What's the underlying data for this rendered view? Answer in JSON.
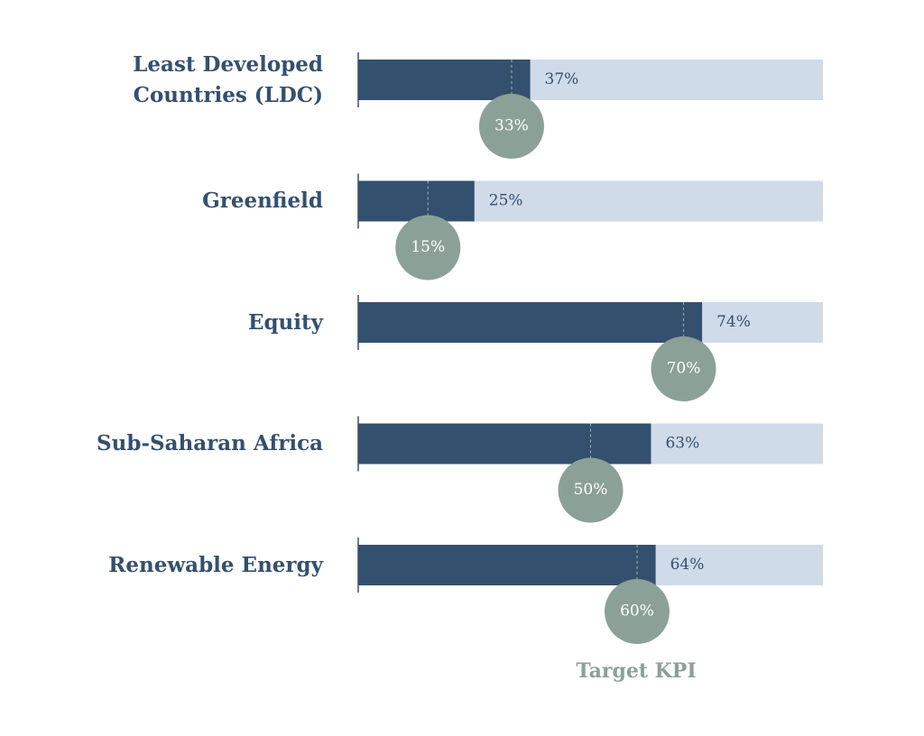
{
  "chart_data": {
    "type": "bar",
    "categories": [
      "Least Developed Countries (LDC)",
      "Greenfield",
      "Equity",
      "Sub-Saharan Africa",
      "Renewable Energy"
    ],
    "values": [
      37,
      25,
      74,
      63,
      64
    ],
    "value_labels": [
      "37%",
      "25%",
      "74%",
      "63%",
      "64%"
    ],
    "color": "#34506f",
    "track_color": "#d0dbe9",
    "targets": [
      33,
      15,
      70,
      50,
      60
    ],
    "target_labels": [
      "33%",
      "15%",
      "70%",
      "50%",
      "60%"
    ],
    "target_color": "#8ba197",
    "target_legend": "Target KPI",
    "xlim": [
      0,
      100
    ]
  }
}
